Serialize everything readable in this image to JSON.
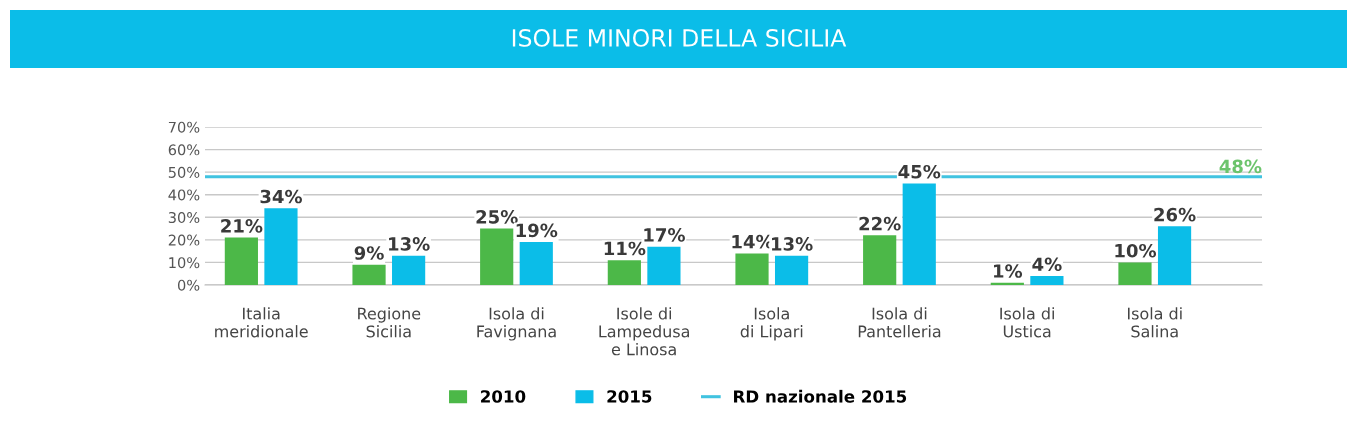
{
  "chart_data": {
    "type": "bar",
    "title": "ISOLE MINORI DELLA SICILIA",
    "categories": [
      "Italia\nmeridionale",
      "Regione\nSicilia",
      "Isola di\nFavignana",
      "Isole di\nLampedusa\ne Linosa",
      "Isola\ndi Lipari",
      "Isola di\nPantelleria",
      "Isola di\nUstica",
      "Isola di\nSalina"
    ],
    "series": [
      {
        "name": "2010",
        "color": "#4cb848",
        "values": [
          21,
          9,
          25,
          11,
          14,
          22,
          1,
          10
        ]
      },
      {
        "name": "2015",
        "color": "#0bbde8",
        "values": [
          34,
          13,
          19,
          17,
          13,
          45,
          4,
          26
        ]
      }
    ],
    "ylim": [
      0,
      70
    ],
    "yticks": [
      {
        "value": 0,
        "label": "0%"
      },
      {
        "value": 10,
        "label": "10%"
      },
      {
        "value": 20,
        "label": "20%"
      },
      {
        "value": 30,
        "label": "30%"
      },
      {
        "value": 40,
        "label": "40%"
      },
      {
        "value": 50,
        "label": "50%"
      },
      {
        "value": 60,
        "label": "60%"
      },
      {
        "value": 70,
        "label": "70%"
      }
    ],
    "ref_lines": [
      {
        "axis": "y",
        "value": 48,
        "label": "RD nazionale 2015",
        "color": "#41c3e0"
      }
    ],
    "annotations": [
      {
        "text": "48%",
        "y": 48
      }
    ],
    "value_labels": [
      [
        "21%",
        "9%",
        "25%",
        "11%",
        "14%",
        "22%",
        "1%",
        "10%"
      ],
      [
        "34%",
        "13%",
        "19%",
        "17%",
        "13%",
        "45%",
        "4%",
        "26%"
      ]
    ],
    "grid": "y",
    "legend": "bottom"
  }
}
